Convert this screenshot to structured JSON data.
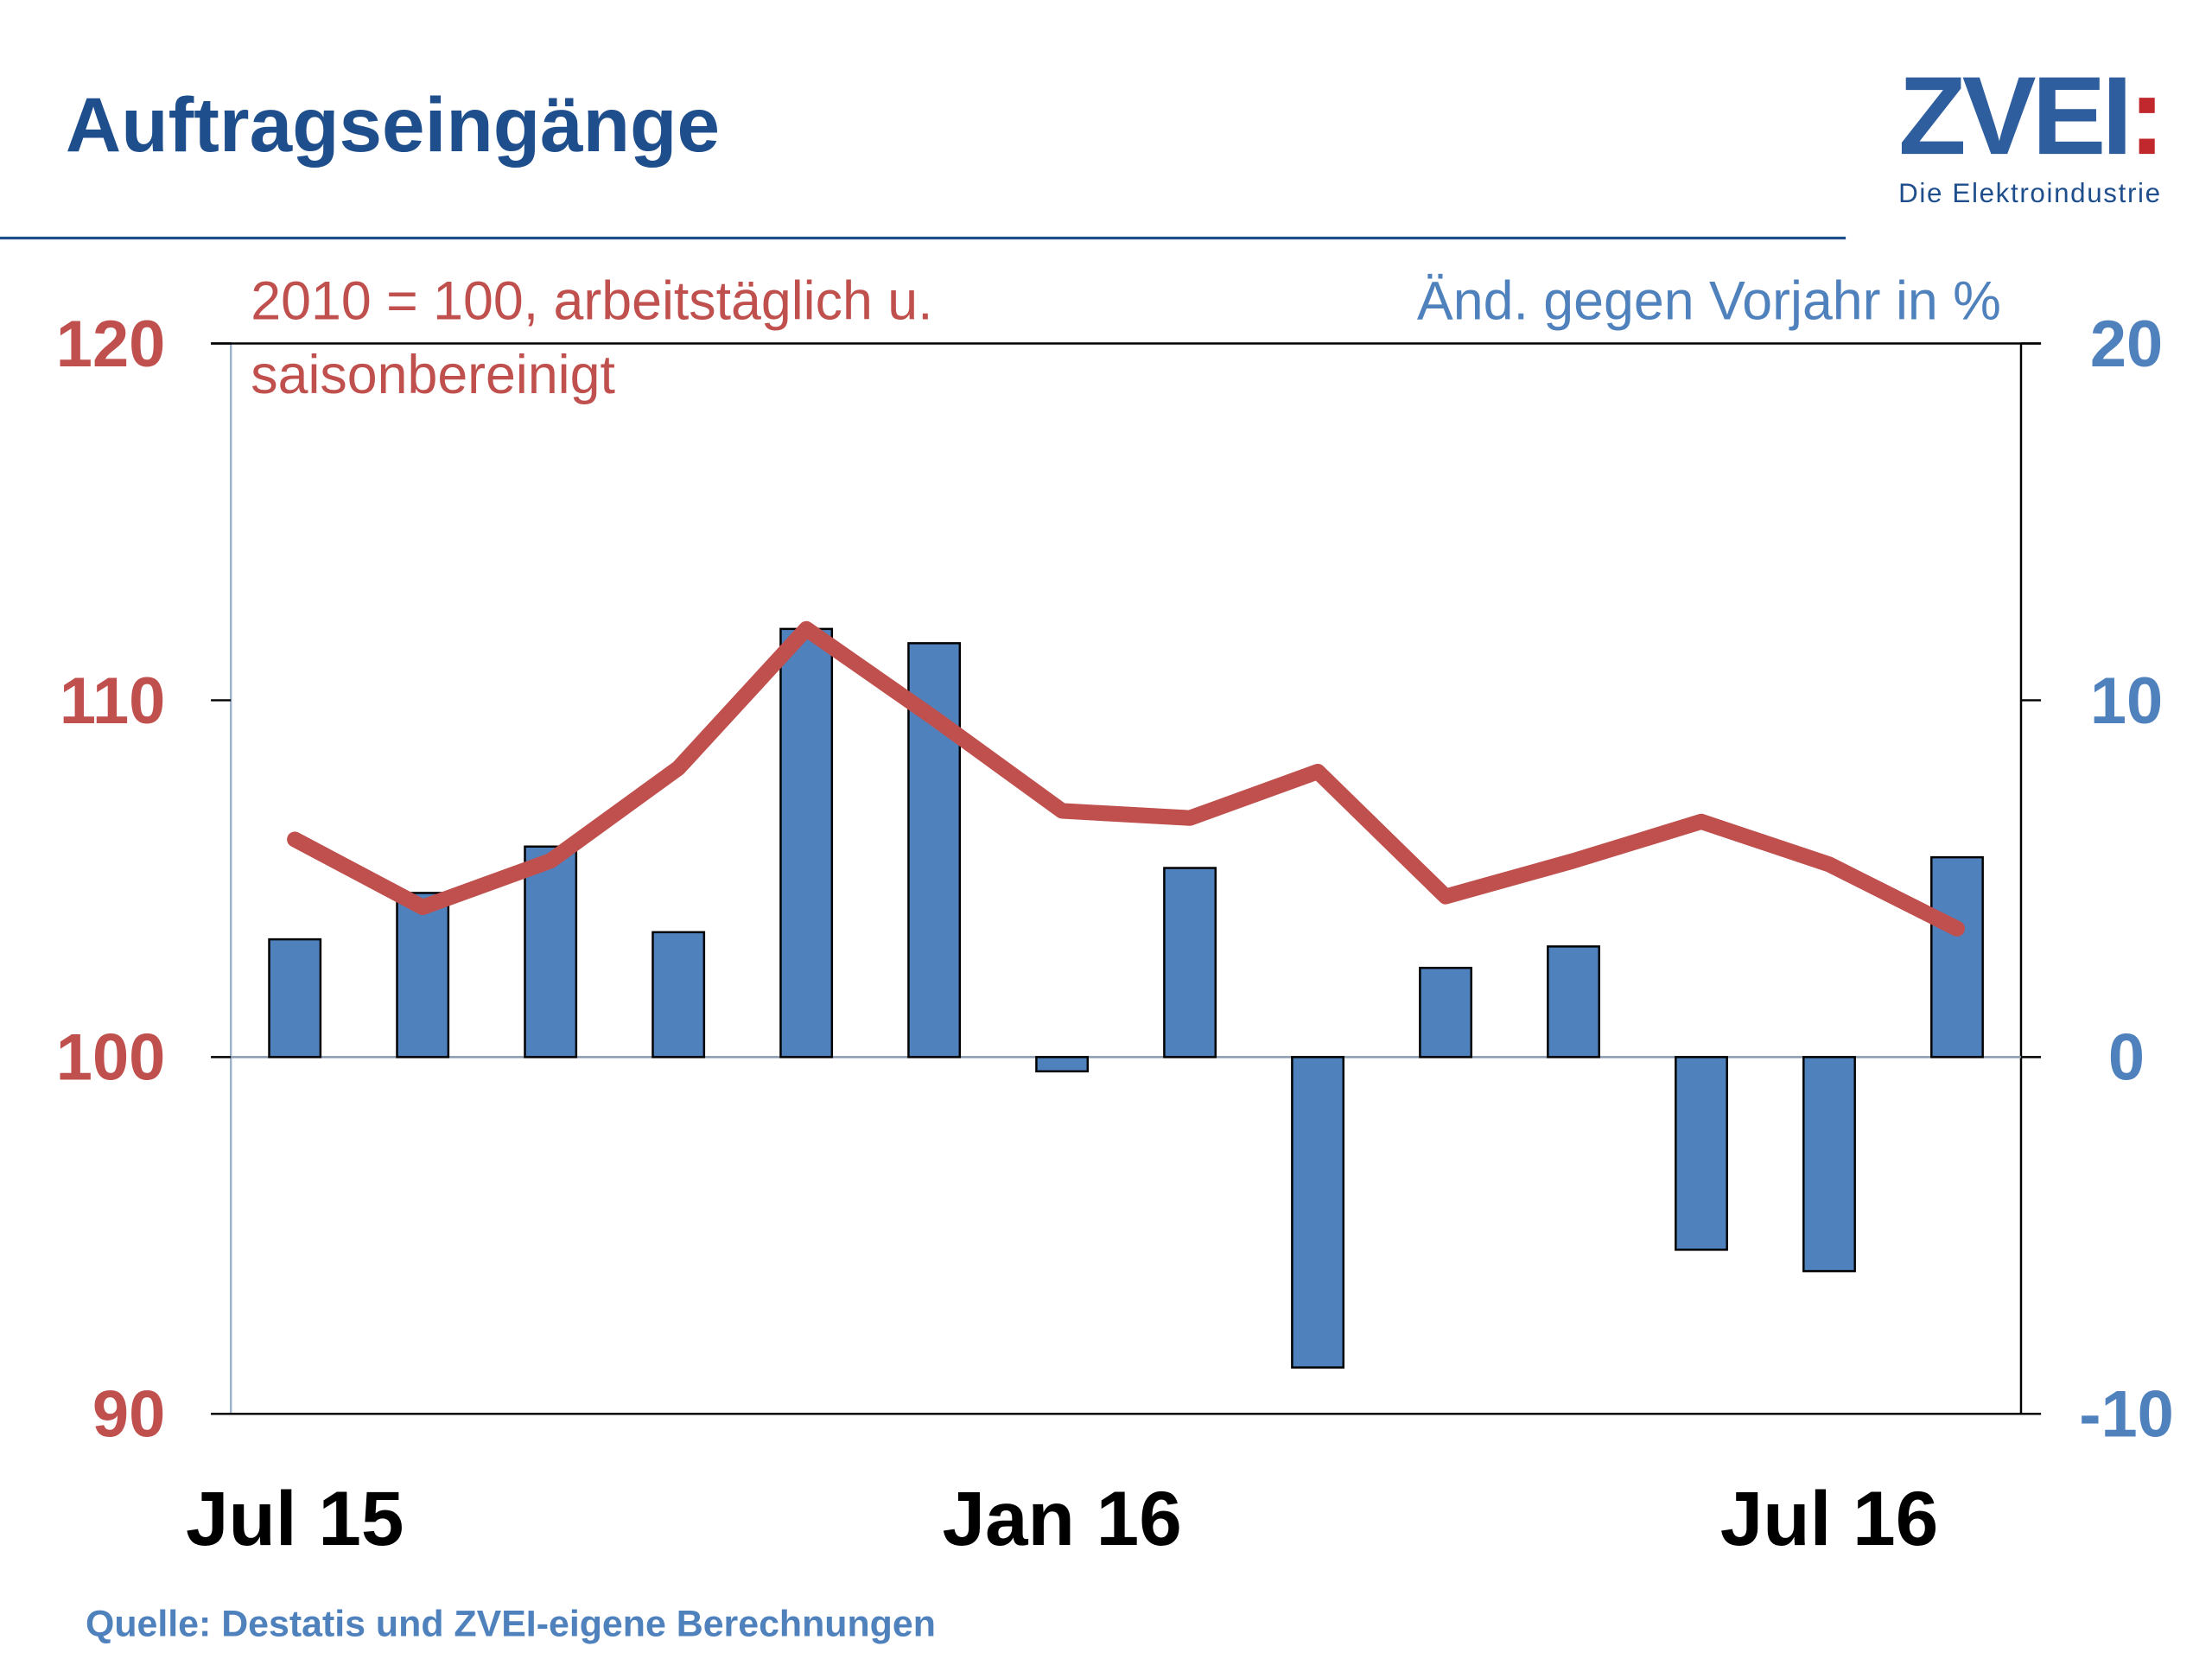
{
  "header": {
    "title": "Auftragseingänge",
    "logo_name": "ZVEI",
    "logo_colon": ":",
    "logo_tagline": "Die Elektroindustrie"
  },
  "chart_data": {
    "type": "bar",
    "annotations": {
      "left_axis": [
        "2010 = 100, arbeitstäglich u.",
        "saisonbereinigt"
      ],
      "right_axis": "Änd. gegen Vorjahr in %"
    },
    "categories": [
      "Jul 15",
      null,
      null,
      null,
      null,
      null,
      "Jan 16",
      null,
      null,
      null,
      null,
      null,
      "Jul 16",
      null
    ],
    "series": [
      {
        "type": "bar",
        "axis": "y2",
        "color": "#4f81bd",
        "values": [
          3.3,
          4.6,
          5.9,
          3.5,
          12.0,
          11.6,
          -0.4,
          5.3,
          -8.7,
          2.5,
          3.1,
          -5.4,
          -6.0,
          5.6
        ]
      },
      {
        "type": "line",
        "color": "#c0504d",
        "values": [
          106.1,
          104.2,
          105.5,
          108.1,
          112.0,
          109.5,
          106.9,
          106.7,
          108.0,
          104.5,
          105.5,
          106.6,
          105.4,
          103.6
        ]
      }
    ],
    "ylim": [
      90,
      120
    ],
    "yticks": [
      90,
      100,
      110,
      120
    ],
    "y2lim": [
      -10,
      20
    ],
    "y2ticks": [
      -10,
      0,
      10,
      20
    ],
    "ytick_color": "#c0504d",
    "y2tick_color": "#4f81bd"
  },
  "footer": {
    "source": "Quelle: Destatis und ZVEI-eigene Berechnungen"
  }
}
